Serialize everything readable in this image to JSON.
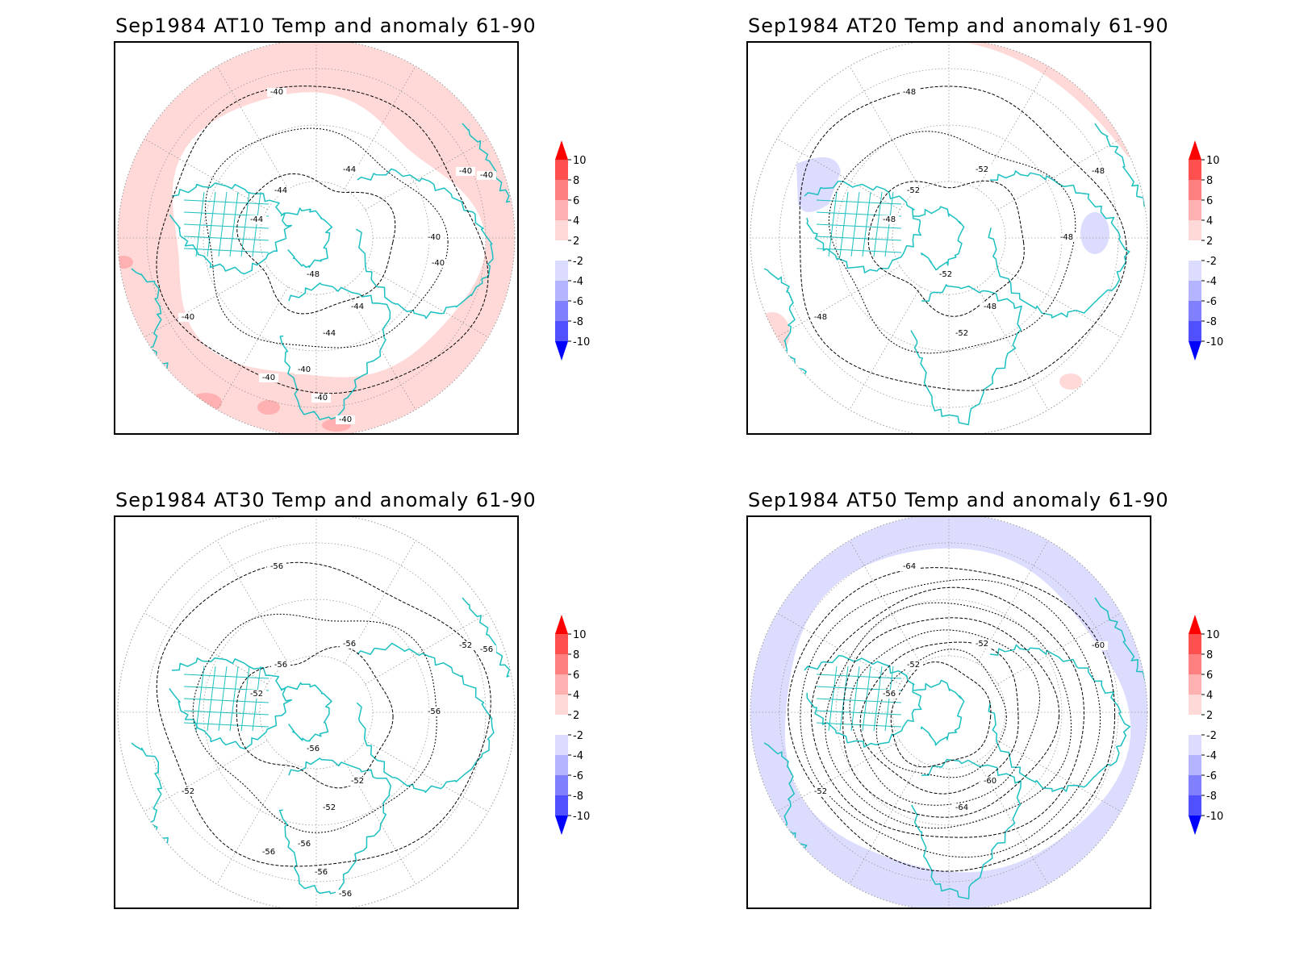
{
  "panels": [
    {
      "title": "Sep1984 AT10 Temp and anomaly 61-90",
      "anomaly": "warm-ring",
      "contour_labels": [
        "-40",
        "-40",
        "-40",
        "-44",
        "-44",
        "-44",
        "-44",
        "-44",
        "-48",
        "-40",
        "-40",
        "-40",
        "-40",
        "-40",
        "-40",
        "-40"
      ]
    },
    {
      "title": "Sep1984 AT20 Temp and anomaly 61-90",
      "anomaly": "mostly-neutral",
      "contour_labels": [
        "-48",
        "-48",
        "-48",
        "-52",
        "-52",
        "-48",
        "-48",
        "-52",
        "-52",
        "-48"
      ]
    },
    {
      "title": "Sep1984 AT30 Temp and anomaly 61-90",
      "anomaly": "neutral",
      "contour_labels": [
        "-56",
        "-52",
        "-52",
        "-56",
        "-56",
        "-52",
        "-52",
        "-52",
        "-56",
        "-56",
        "-56",
        "-56",
        "-56",
        "-56",
        "-56"
      ]
    },
    {
      "title": "Sep1984 AT50 Temp and anomaly 61-90",
      "anomaly": "cool-ring",
      "contour_labels": [
        "-64",
        "-60",
        "-52",
        "-52",
        "-52",
        "-56",
        "-60",
        "-64"
      ]
    }
  ],
  "colorbar": {
    "labels": [
      "10",
      "8",
      "6",
      "4",
      "2",
      "-2",
      "-4",
      "-6",
      "-8",
      "-10"
    ],
    "colors": [
      "#ff0000",
      "#ff5050",
      "#ff8080",
      "#ffb0b0",
      "#ffd8d8",
      "#ffffff",
      "#dcdcff",
      "#b4b4ff",
      "#8080ff",
      "#5050ff",
      "#0000ff"
    ]
  },
  "colors": {
    "coastline": "#1cc0c0",
    "contour": "#000000",
    "grid": "#999999",
    "warm_light": "#ffd8d8",
    "warm_mid": "#ffb0b0",
    "cool_light": "#dcdcff"
  }
}
